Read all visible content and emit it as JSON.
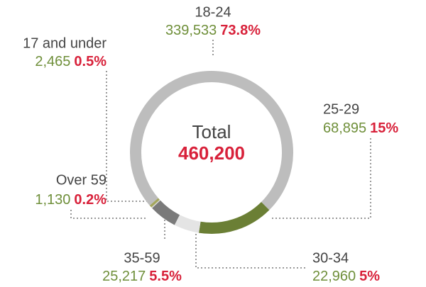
{
  "chart_data": {
    "type": "donut",
    "categories": [
      "18-24",
      "25-29",
      "30-34",
      "35-59",
      "Over 59",
      "17 and under"
    ],
    "values": [
      73.8,
      15,
      5,
      5.5,
      0.2,
      0.5
    ],
    "value_labels": [
      "73.8%",
      "15%",
      "5%",
      "5.5%",
      "0.2%",
      "0.5%"
    ],
    "counts": [
      339533,
      68895,
      22960,
      25217,
      1130,
      2465
    ],
    "count_labels": [
      "339,533",
      "68,895",
      "22,960",
      "25,217",
      "1,130",
      "2,465"
    ],
    "colors": [
      "#bdbdbd",
      "#6b7f35",
      "#e4e4e4",
      "#7a7a7a",
      "#d9d9d9",
      "#a3a65c"
    ],
    "center_label": "Total",
    "total": 460200,
    "total_label": "460,200"
  }
}
